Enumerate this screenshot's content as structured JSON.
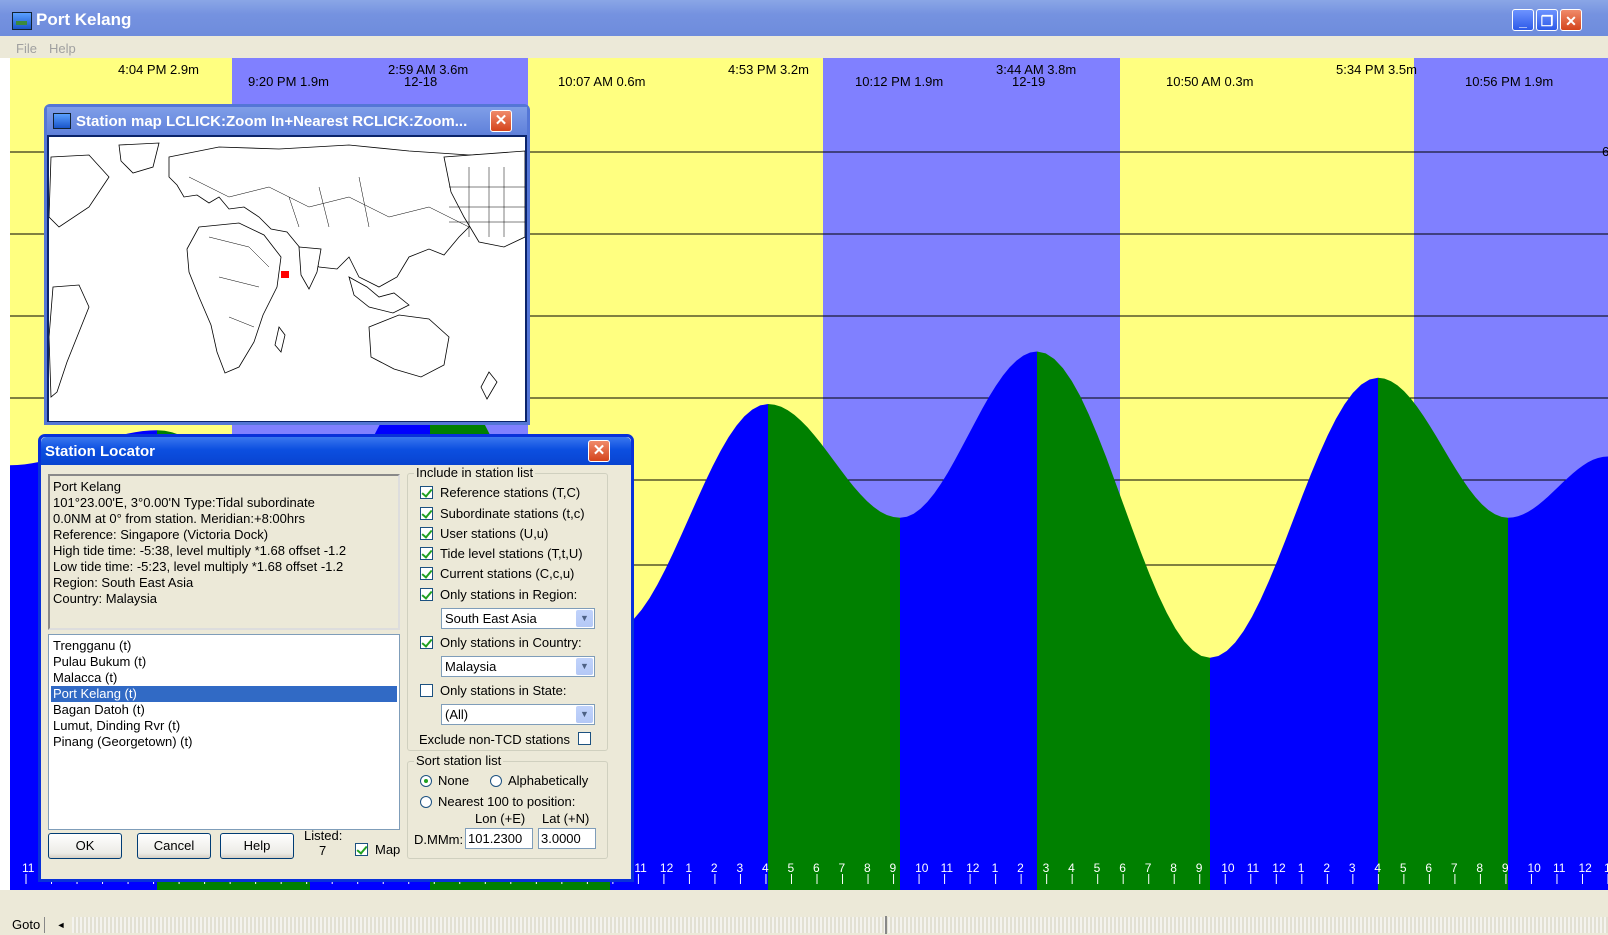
{
  "window": {
    "title": "Port Kelang",
    "minimize": "_",
    "restore": "❐",
    "close": "✕"
  },
  "menu": [
    "File",
    "Help"
  ],
  "chart_data": {
    "type": "area",
    "title": "",
    "background_bands": [
      {
        "color": "#ffff80",
        "kind": "day"
      },
      {
        "color": "#8080ff",
        "kind": "night"
      },
      {
        "color": "#ffff80",
        "kind": "day"
      },
      {
        "color": "#8080ff",
        "kind": "night"
      },
      {
        "color": "#ffff80",
        "kind": "day"
      },
      {
        "color": "#8080ff",
        "kind": "night"
      }
    ],
    "fill_colors": {
      "rising": "#0000ff",
      "falling": "#008000"
    },
    "tide_events": [
      {
        "label": "4:04 PM 2.9m",
        "date": "",
        "height": 2.9,
        "type": "high"
      },
      {
        "label": "9:20 PM 1.9m",
        "date": "",
        "height": 1.9,
        "type": "low"
      },
      {
        "label": "2:59 AM 3.6m",
        "date": "12-18",
        "height": 3.6,
        "type": "high"
      },
      {
        "label": "10:07 AM 0.6m",
        "date": "",
        "height": 0.6,
        "type": "low"
      },
      {
        "label": "4:53 PM 3.2m",
        "date": "",
        "height": 3.2,
        "type": "high"
      },
      {
        "label": "10:12 PM 1.9m",
        "date": "",
        "height": 1.9,
        "type": "low"
      },
      {
        "label": "3:44 AM 3.8m",
        "date": "12-19",
        "height": 3.8,
        "type": "high"
      },
      {
        "label": "10:50 AM 0.3m",
        "date": "",
        "height": 0.3,
        "type": "low"
      },
      {
        "label": "5:34 PM 3.5m",
        "date": "",
        "height": 3.5,
        "type": "high"
      },
      {
        "label": "10:56 PM 1.9m",
        "date": "",
        "height": 1.9,
        "type": "low"
      }
    ],
    "y_right_label": "6",
    "hour_ticks": [
      "11",
      "12",
      "1",
      "2",
      "3",
      "4",
      "5",
      "6",
      "7",
      "8",
      "9",
      "10",
      "11",
      "12",
      "1",
      "2",
      "3",
      "4",
      "5",
      "6",
      "7",
      "8",
      "9",
      "10",
      "11",
      "12",
      "1",
      "2",
      "3",
      "4",
      "5",
      "6",
      "7",
      "8",
      "9",
      "10",
      "11",
      "12",
      "1",
      "2",
      "3",
      "4",
      "5",
      "6",
      "7",
      "8",
      "9",
      "10",
      "11",
      "12",
      "1",
      "2",
      "3",
      "4",
      "5",
      "6",
      "7",
      "8",
      "9",
      "10",
      "11",
      "12",
      "1"
    ]
  },
  "status": {
    "goto": "Goto",
    "scroll_left": "◄"
  },
  "station_map": {
    "title": "Station map LCLICK:Zoom In+Nearest  RCLICK:Zoom...",
    "marker_color": "#ff0000"
  },
  "locator": {
    "title": "Station Locator",
    "info_lines": [
      "Port Kelang",
      "101°23.00'E, 3°0.00'N  Type:Tidal subordinate",
      "0.0NM at 0° from station. Meridian:+8:00hrs",
      "Reference: Singapore (Victoria Dock)",
      "High tide time: -5:38,  level multiply *1.68 offset -1.2",
      "Low tide time: -5:23,  level multiply *1.68  offset -1.2",
      "Region: South East Asia",
      "Country: Malaysia"
    ],
    "stations": [
      "Trengganu (t)",
      "Pulau Bukum (t)",
      "Malacca (t)",
      "Port Kelang (t)",
      "Bagan Datoh (t)",
      "Lumut, Dinding Rvr (t)",
      "Pinang (Georgetown) (t)"
    ],
    "selected_station": "Port Kelang (t)",
    "include_title": "Include in station list",
    "checks": {
      "reference": {
        "label": "Reference stations (T,C)",
        "checked": true
      },
      "subordinate": {
        "label": "Subordinate stations (t,c)",
        "checked": true
      },
      "user": {
        "label": "User stations (U,u)",
        "checked": true
      },
      "tide_level": {
        "label": "Tide level stations (T,t,U)",
        "checked": true
      },
      "current": {
        "label": "Current stations (C,c,u)",
        "checked": true
      },
      "region": {
        "label": "Only stations in Region:",
        "checked": true
      },
      "country": {
        "label": "Only stations in Country:",
        "checked": true
      },
      "state": {
        "label": "Only stations in State:",
        "checked": false
      }
    },
    "region_value": "South East Asia",
    "country_value": "Malaysia",
    "state_value": "(All)",
    "exclude_non_tcd": {
      "label": "Exclude non-TCD stations",
      "checked": false
    },
    "sort_title": "Sort station list",
    "sort_none": "None",
    "sort_alpha": "Alphabetically",
    "sort_nearest": "Nearest 100 to position:",
    "sort_selected": "None",
    "lon_label": "Lon (+E)",
    "lat_label": "Lat (+N)",
    "dmmm_label": "D.MMm:",
    "lon_value": "101.2300",
    "lat_value": "3.0000",
    "ok": "OK",
    "cancel": "Cancel",
    "help": "Help",
    "listed_label": "Listed:",
    "listed_count": "7",
    "map_label": "Map",
    "map_checked": true
  }
}
